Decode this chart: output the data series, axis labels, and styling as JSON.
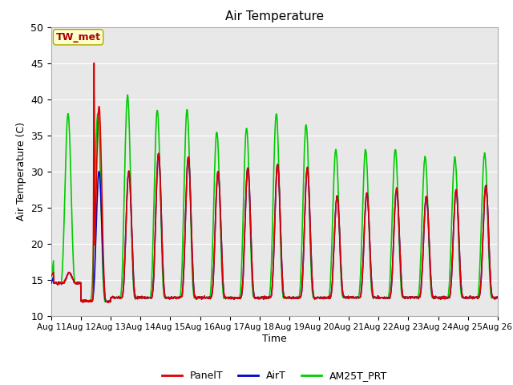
{
  "title": "Air Temperature",
  "xlabel": "Time",
  "ylabel": "Air Temperature (C)",
  "ylim": [
    10,
    50
  ],
  "background_color": "#e8e8e8",
  "annotation_text": "TW_met",
  "annotation_color": "#aa0000",
  "annotation_bg": "#ffffcc",
  "annotation_border": "#aaaa00",
  "series": {
    "PanelT": {
      "color": "#dd0000",
      "lw": 1.2
    },
    "AirT": {
      "color": "#0000cc",
      "lw": 1.2
    },
    "AM25T_PRT": {
      "color": "#00cc00",
      "lw": 1.2
    }
  },
  "tick_labels": [
    "Aug 11",
    "Aug 12",
    "Aug 13",
    "Aug 14",
    "Aug 15",
    "Aug 16",
    "Aug 17",
    "Aug 18",
    "Aug 19",
    "Aug 20",
    "Aug 21",
    "Aug 22",
    "Aug 23",
    "Aug 24",
    "Aug 25",
    "Aug 26"
  ],
  "yticks": [
    10,
    15,
    20,
    25,
    30,
    35,
    40,
    45,
    50
  ],
  "grid_color": "#ffffff",
  "legend_labels": [
    "PanelT",
    "AirT",
    "AM25T_PRT"
  ]
}
